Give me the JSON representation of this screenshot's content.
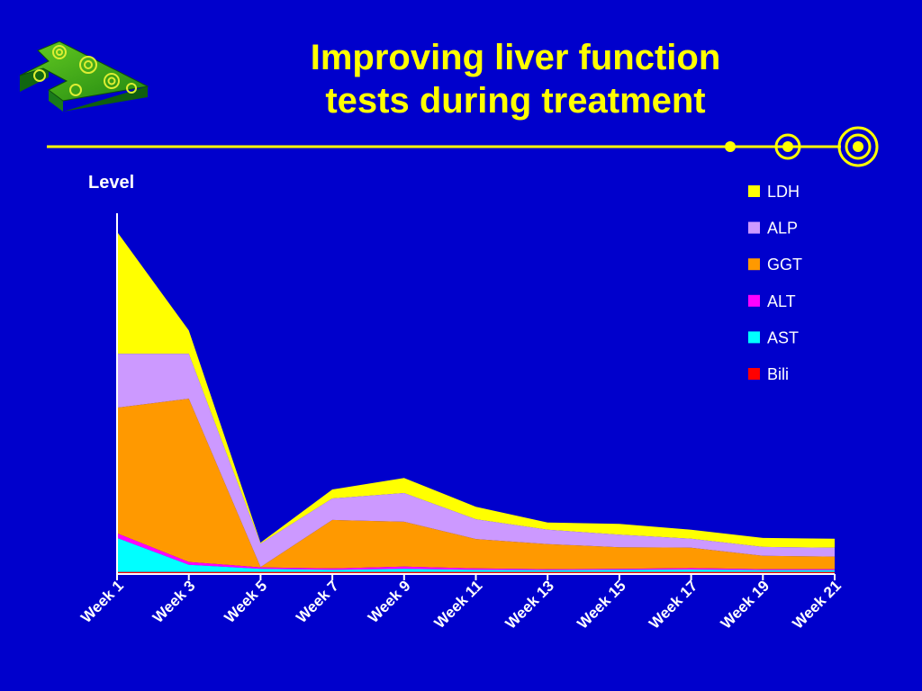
{
  "slide": {
    "title_line1": "Improving liver function",
    "title_line2": "tests during treatment",
    "logo_icon": "green-t-block-logo",
    "divider_icon": "target-line-decoration",
    "colors": {
      "background": "#0000cc",
      "title": "#ffff00",
      "divider": "#ffff00",
      "axis": "#ffffff",
      "text": "#ffffff"
    }
  },
  "chart_data": {
    "type": "area",
    "stacked": true,
    "title": "",
    "xlabel": "",
    "ylabel": "Level",
    "ylim": [
      0,
      100
    ],
    "grid": false,
    "legend_position": "top-right",
    "categories": [
      "Week 1",
      "Week 3",
      "Week 5",
      "Week 7",
      "Week 9",
      "Week 11",
      "Week 13",
      "Week 15",
      "Week 17",
      "Week 19",
      "Week 21"
    ],
    "series": [
      {
        "name": "Bili",
        "color": "#ff0000",
        "values": [
          0.3,
          0.3,
          0.3,
          0.3,
          0.3,
          0.3,
          0.3,
          0.3,
          0.3,
          0.3,
          0.3
        ]
      },
      {
        "name": "AST",
        "color": "#00ffff",
        "values": [
          9.5,
          2.0,
          0.9,
          0.6,
          0.9,
          0.6,
          0.5,
          0.6,
          0.7,
          0.5,
          0.5
        ]
      },
      {
        "name": "ALT",
        "color": "#ff00ff",
        "values": [
          1.3,
          0.8,
          0.4,
          0.4,
          0.6,
          0.4,
          0.3,
          0.3,
          0.4,
          0.3,
          0.3
        ]
      },
      {
        "name": "GGT",
        "color": "#ff9900",
        "values": [
          35,
          45.5,
          0.1,
          13.5,
          12.5,
          8.2,
          7.0,
          6.0,
          5.7,
          3.7,
          3.5
        ]
      },
      {
        "name": "ALP",
        "color": "#cc99ff",
        "values": [
          15,
          12.5,
          6.5,
          6.0,
          8.0,
          5.5,
          4.0,
          3.5,
          2.5,
          2.5,
          2.5
        ]
      },
      {
        "name": "LDH",
        "color": "#ffff00",
        "values": [
          34,
          6.5,
          0.3,
          2.5,
          4.2,
          3.5,
          2.0,
          3.0,
          2.5,
          2.5,
          2.5
        ]
      }
    ],
    "legend_order": [
      "LDH",
      "ALP",
      "GGT",
      "ALT",
      "AST",
      "Bili"
    ]
  }
}
